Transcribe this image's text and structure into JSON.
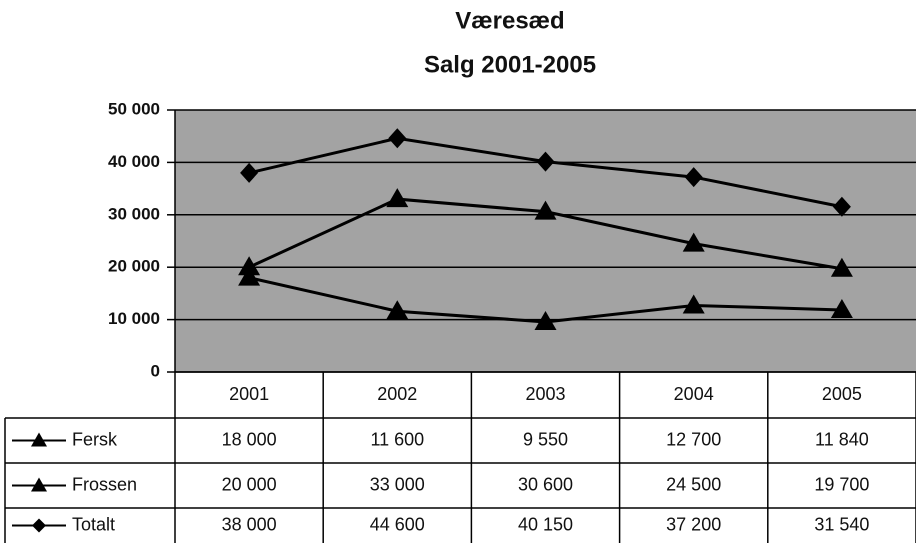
{
  "chart_data": {
    "type": "line",
    "title": "Væresæd",
    "subtitle": "Salg 2001-2005",
    "categories": [
      "2001",
      "2002",
      "2003",
      "2004",
      "2005"
    ],
    "ylim": [
      0,
      50000
    ],
    "yticks": [
      0,
      {
        "value": 10000,
        "label": "10 000"
      },
      {
        "value": 20000,
        "label": "20 000"
      },
      {
        "value": 30000,
        "label": "30 000"
      },
      {
        "value": 40000,
        "label": "40 000"
      },
      {
        "value": 50000,
        "label": "50 000"
      }
    ],
    "grid": true,
    "series": [
      {
        "name": "Fersk",
        "color": "#000000",
        "marker": "triangle",
        "values": [
          18000,
          11600,
          9550,
          12700,
          11840
        ],
        "value_labels": [
          "18 000",
          "11 600",
          "9 550",
          "12 700",
          "11 840"
        ]
      },
      {
        "name": "Frossen",
        "color": "#000000",
        "marker": "triangle",
        "values": [
          20000,
          33000,
          30600,
          24500,
          19700
        ],
        "value_labels": [
          "20 000",
          "33 000",
          "30 600",
          "24 500",
          "19 700"
        ]
      },
      {
        "name": "Totalt",
        "color": "#000000",
        "marker": "diamond",
        "values": [
          38000,
          44600,
          40150,
          37200,
          31540
        ],
        "value_labels": [
          "38 000",
          "44 600",
          "40 150",
          "37 200",
          "31 540"
        ]
      }
    ]
  }
}
